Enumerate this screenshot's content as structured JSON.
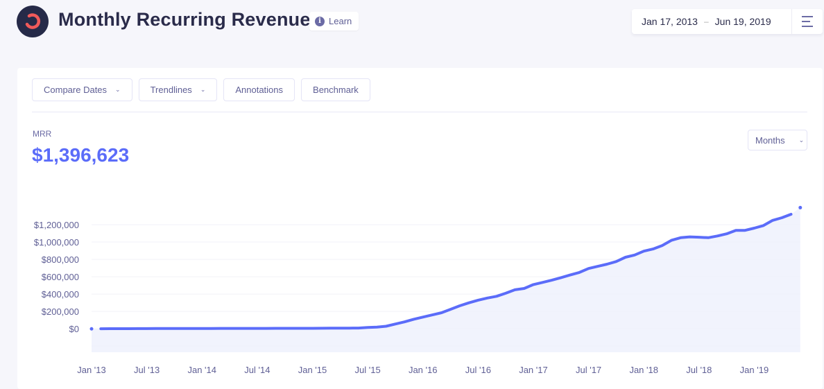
{
  "header": {
    "title": "Monthly Recurring Revenue",
    "learn_label": "Learn",
    "date_start": "Jan 17, 2013",
    "date_separator": "–",
    "date_end": "Jun 19, 2019"
  },
  "toolbar": {
    "compare_dates": "Compare Dates",
    "trendlines": "Trendlines",
    "annotations": "Annotations",
    "benchmark": "Benchmark"
  },
  "metric": {
    "label": "MRR",
    "value": "$1,396,623"
  },
  "interval_select": {
    "selected": "Months"
  },
  "colors": {
    "accent": "#5b6cf9",
    "area_fill": "#eef0fd",
    "title": "#2a2b4a",
    "logo_bg": "#262a48",
    "logo_ring": "#f05a5a"
  },
  "chart_data": {
    "type": "area",
    "x_start": "2013-01",
    "x_end": "2019-06",
    "interval": "month",
    "ylim": [
      -270000,
      1400000
    ],
    "grid": true,
    "y_ticks": [
      0,
      200000,
      400000,
      600000,
      800000,
      1000000,
      1200000
    ],
    "y_tick_labels": [
      "$0",
      "$200,000",
      "$400,000",
      "$600,000",
      "$800,000",
      "$1,000,000",
      "$1,200,000"
    ],
    "x_tick_labels": [
      "Jan '13",
      "Jul '13",
      "Jan '14",
      "Jul '14",
      "Jan '15",
      "Jul '15",
      "Jan '16",
      "Jul '16",
      "Jan '17",
      "Jul '17",
      "Jan '18",
      "Jul '18",
      "Jan '19"
    ],
    "values": [
      0,
      1000,
      1500,
      2000,
      2000,
      2500,
      2500,
      3000,
      3000,
      3000,
      3500,
      3500,
      4000,
      4000,
      4500,
      4500,
      5000,
      5000,
      5000,
      5000,
      5500,
      5500,
      5500,
      6000,
      6000,
      6500,
      7000,
      7500,
      8000,
      9000,
      16000,
      20000,
      30000,
      55000,
      80000,
      110000,
      135000,
      160000,
      185000,
      225000,
      265000,
      300000,
      330000,
      355000,
      375000,
      410000,
      450000,
      465000,
      510000,
      535000,
      560000,
      590000,
      620000,
      650000,
      695000,
      720000,
      745000,
      775000,
      825000,
      850000,
      895000,
      920000,
      960000,
      1020000,
      1050000,
      1060000,
      1056000,
      1050000,
      1070000,
      1095000,
      1135000,
      1135000,
      1160000,
      1190000,
      1250000,
      1280000,
      1320000,
      1396623
    ]
  }
}
